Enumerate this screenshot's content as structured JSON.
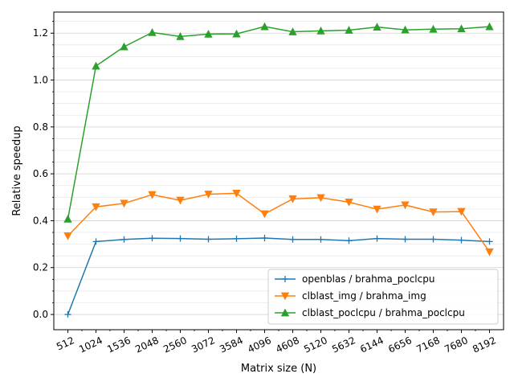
{
  "chart_data": {
    "type": "line",
    "title": "",
    "xlabel": "Matrix size (N)",
    "ylabel": "Relative speedup",
    "x": [
      512,
      1024,
      1536,
      2048,
      2560,
      3072,
      3584,
      4096,
      4608,
      5120,
      5632,
      6144,
      6656,
      7168,
      7680,
      8192
    ],
    "xtick_labels": [
      "512",
      "1024",
      "1536",
      "2048",
      "2560",
      "3072",
      "3584",
      "4096",
      "4608",
      "5120",
      "5632",
      "6144",
      "6656",
      "7168",
      "7680",
      "8192"
    ],
    "yticks": [
      0.0,
      0.2,
      0.4,
      0.6,
      0.8,
      1.0,
      1.2
    ],
    "ytick_labels": [
      "0.0",
      "0.2",
      "0.4",
      "0.6",
      "0.8",
      "1.0",
      "1.2"
    ],
    "xlim": [
      256,
      8448
    ],
    "ylim": [
      -0.065,
      1.29
    ],
    "grid": "horizontal",
    "legend_position": "lower-right",
    "series": [
      {
        "name": "openblas / brahma_poclcpu",
        "color": "#1f77b4",
        "marker": "plus",
        "values": [
          0.0,
          0.311,
          0.32,
          0.325,
          0.324,
          0.321,
          0.323,
          0.326,
          0.32,
          0.32,
          0.315,
          0.324,
          0.321,
          0.321,
          0.317,
          0.311
        ]
      },
      {
        "name": "clblast_img / brahma_img",
        "color": "#ff7f0e",
        "marker": "triangle-down",
        "values": [
          0.335,
          0.459,
          0.474,
          0.511,
          0.487,
          0.513,
          0.517,
          0.429,
          0.493,
          0.498,
          0.479,
          0.449,
          0.467,
          0.437,
          0.439,
          0.267
        ]
      },
      {
        "name": "clblast_poclcpu / brahma_poclcpu",
        "color": "#2ca02c",
        "marker": "triangle-up",
        "values": [
          0.407,
          1.06,
          1.142,
          1.203,
          1.186,
          1.196,
          1.197,
          1.228,
          1.206,
          1.21,
          1.213,
          1.226,
          1.214,
          1.217,
          1.219,
          1.228
        ]
      }
    ]
  }
}
